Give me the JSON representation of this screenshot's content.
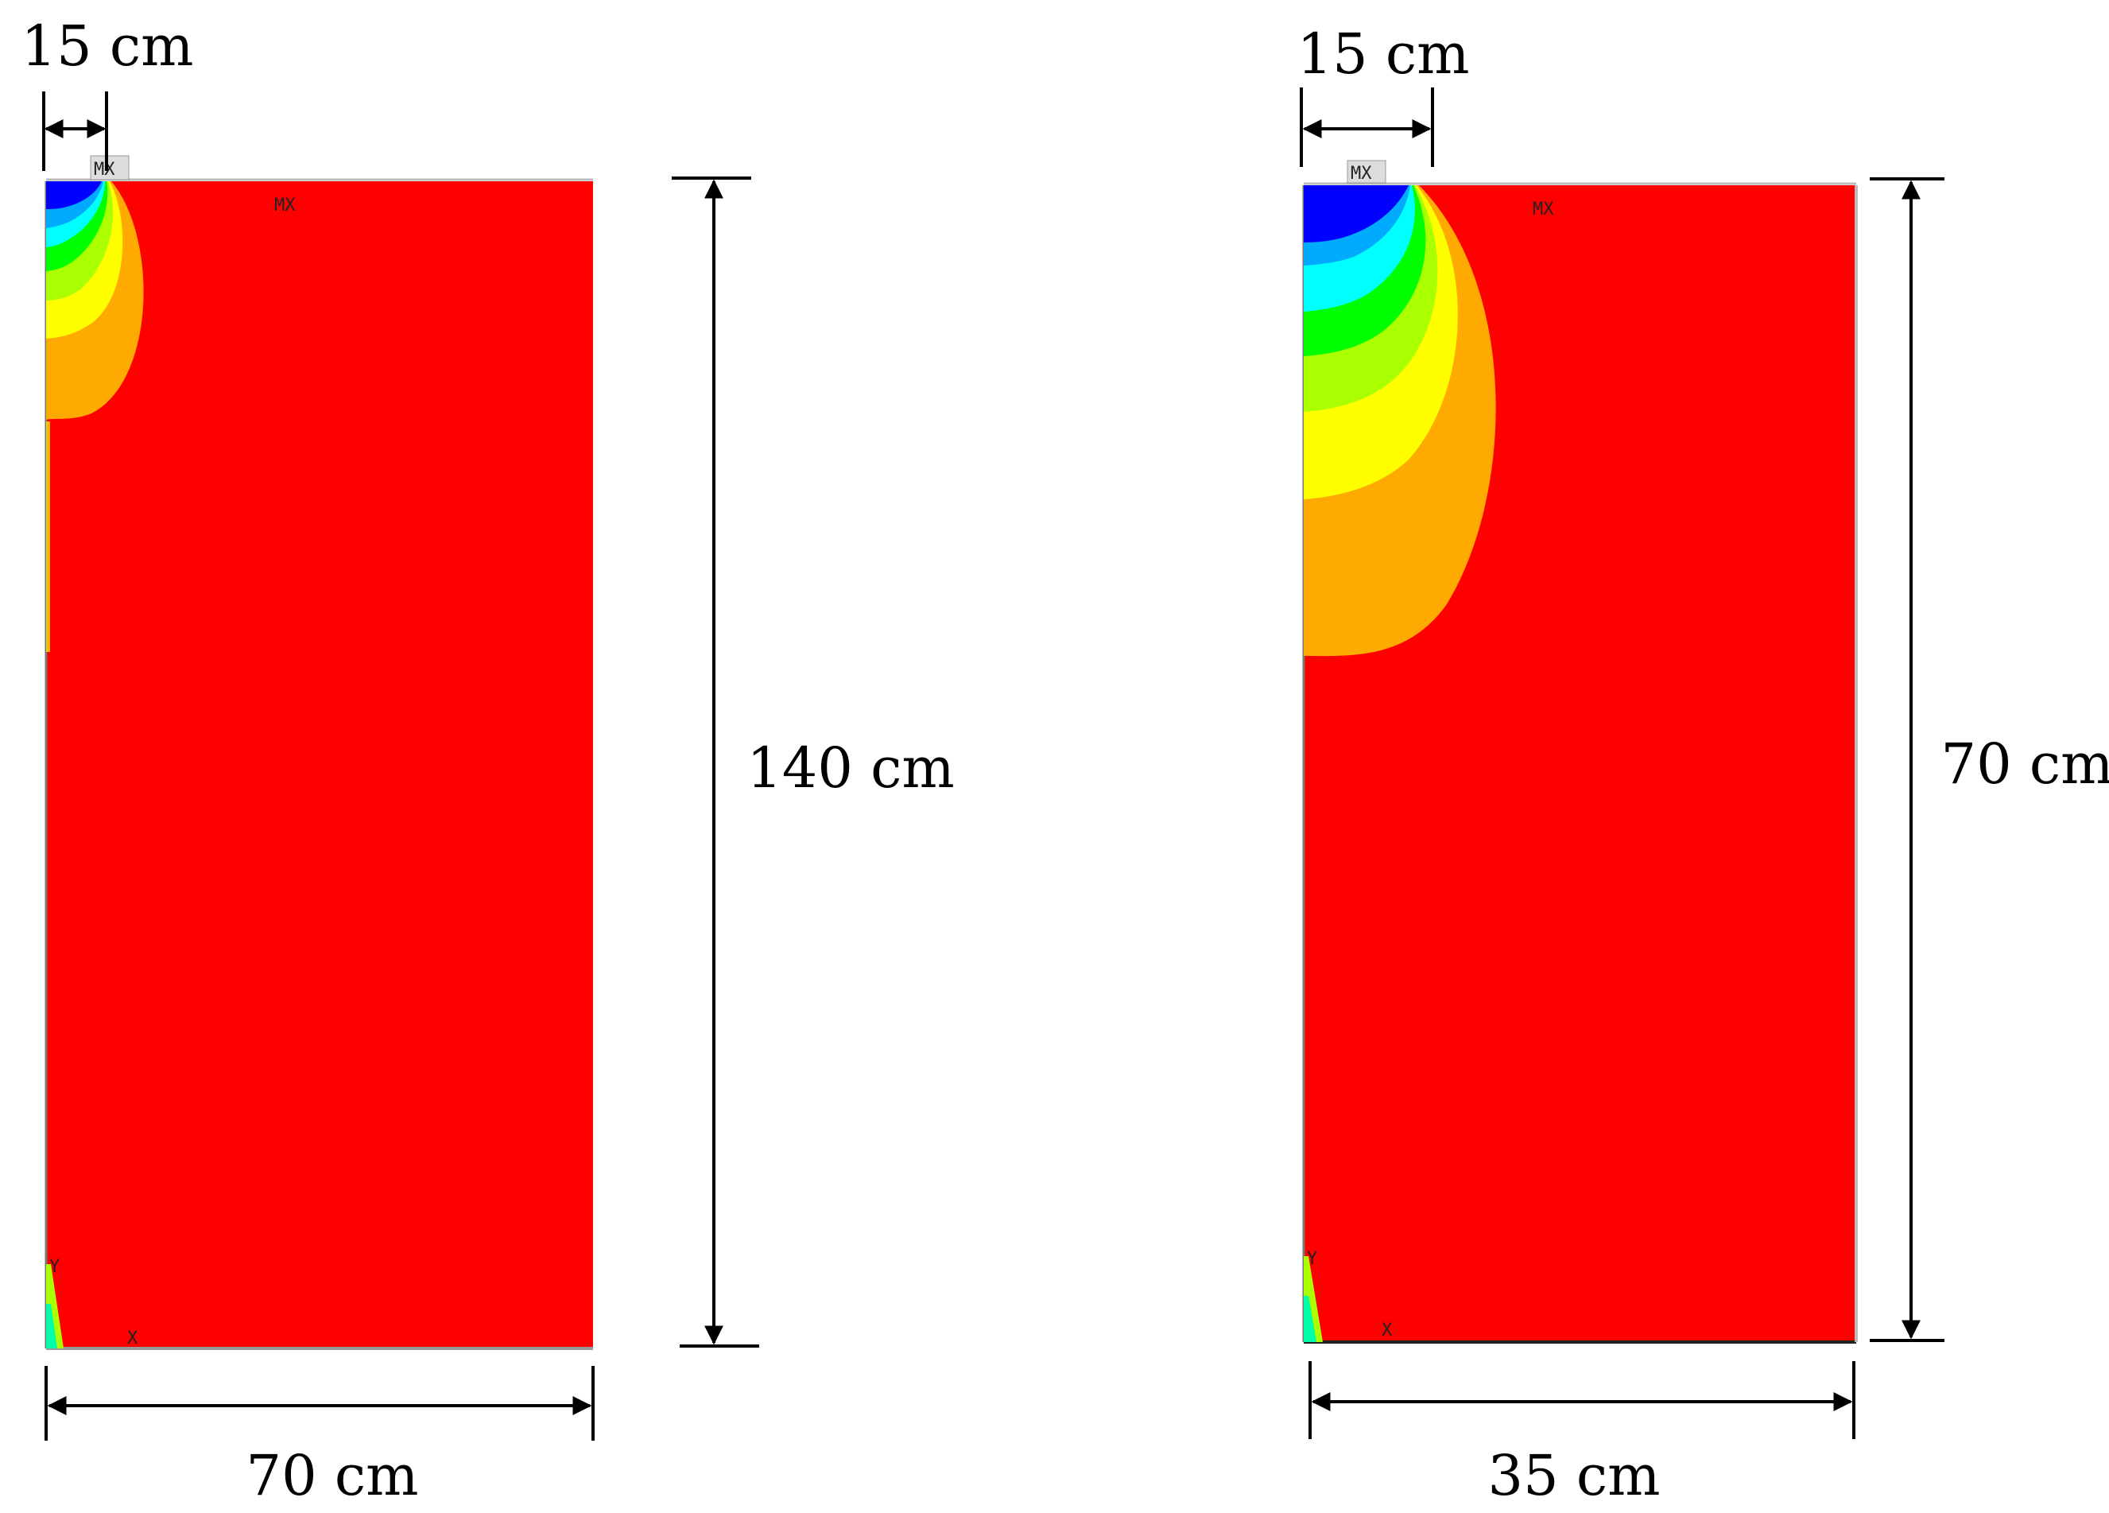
{
  "panels": [
    {
      "id": "left",
      "load_width": "15 cm",
      "height": "140 cm",
      "width": "70 cm"
    },
    {
      "id": "right",
      "load_width": "15 cm",
      "height": "70 cm",
      "width": "35 cm"
    }
  ],
  "colors": {
    "background_field": "#ff0000",
    "contour_levels": [
      "#0000ff",
      "#0055ff",
      "#00aaff",
      "#00ffff",
      "#00ff55",
      "#00ff00",
      "#aaff00",
      "#ffff00",
      "#ffaa00",
      "#ff0000"
    ],
    "dimension_lines": "#000000"
  }
}
